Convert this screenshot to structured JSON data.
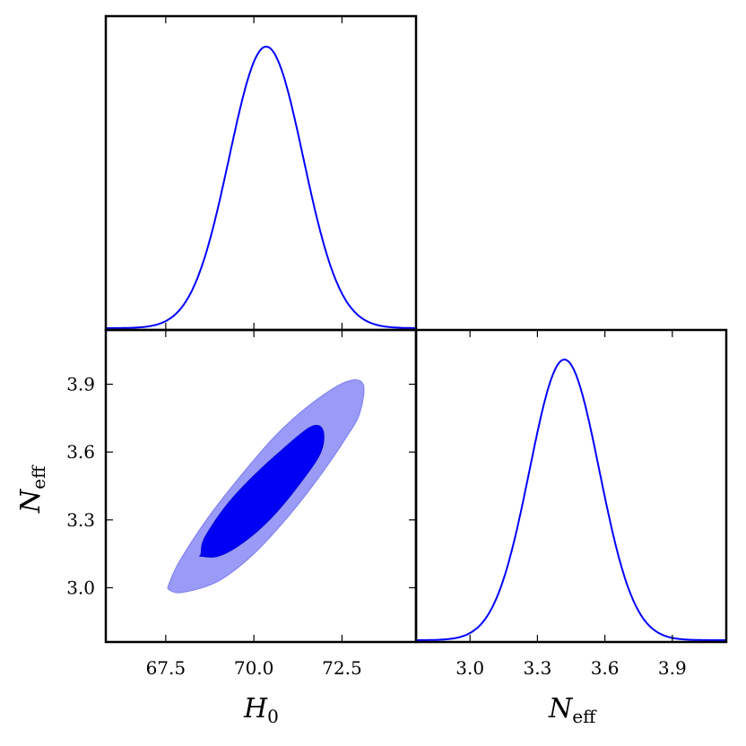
{
  "chart_data": [
    {
      "type": "line",
      "panel": "marginal-H0",
      "x_param": "H0",
      "xlim": [
        65.8,
        74.6
      ],
      "peak_x": 70.35,
      "sigma": 1.05,
      "color": "#0000ff",
      "grid": false
    },
    {
      "type": "scatter",
      "panel": "joint-H0-Neff",
      "plot_kind": "2d-credible-contours",
      "x_param": "H0",
      "y_param": "Neff",
      "xlim": [
        65.8,
        74.6
      ],
      "ylim": [
        2.76,
        4.14
      ],
      "xticks": [
        "67.5",
        "70.0",
        "72.5"
      ],
      "yticks": [
        "3.0",
        "3.3",
        "3.6",
        "3.9"
      ],
      "xlabel_main": "H",
      "xlabel_sub": "0",
      "ylabel_main": "N",
      "ylabel_sub": "eff",
      "contours": [
        {
          "level": "95%",
          "color": "#9a9af7",
          "points": [
            [
              67.6,
              3.02
            ],
            [
              67.9,
              3.12
            ],
            [
              68.7,
              3.31
            ],
            [
              69.6,
              3.49
            ],
            [
              70.6,
              3.67
            ],
            [
              71.6,
              3.81
            ],
            [
              72.6,
              3.91
            ],
            [
              73.1,
              3.9
            ],
            [
              73.0,
              3.77
            ],
            [
              72.6,
              3.66
            ],
            [
              71.9,
              3.5
            ],
            [
              71.0,
              3.32
            ],
            [
              70.0,
              3.15
            ],
            [
              69.0,
              3.03
            ],
            [
              68.0,
              2.98
            ],
            [
              67.6,
              2.99
            ]
          ]
        },
        {
          "level": "68%",
          "color": "#0000f5",
          "points": [
            [
              68.5,
              3.15
            ],
            [
              68.6,
              3.22
            ],
            [
              69.2,
              3.36
            ],
            [
              69.9,
              3.48
            ],
            [
              70.8,
              3.61
            ],
            [
              71.6,
              3.71
            ],
            [
              71.95,
              3.7
            ],
            [
              71.9,
              3.6
            ],
            [
              71.3,
              3.46
            ],
            [
              70.5,
              3.31
            ],
            [
              69.7,
              3.2
            ],
            [
              69.0,
              3.14
            ],
            [
              68.5,
              3.14
            ]
          ]
        }
      ]
    },
    {
      "type": "line",
      "panel": "marginal-Neff",
      "x_param": "Neff",
      "xlim": [
        2.76,
        4.14
      ],
      "peak_x": 3.42,
      "sigma": 0.155,
      "xticks": [
        "3.0",
        "3.3",
        "3.6",
        "3.9"
      ],
      "xlabel_main": "N",
      "xlabel_sub": "eff",
      "color": "#0000ff",
      "grid": false
    }
  ]
}
